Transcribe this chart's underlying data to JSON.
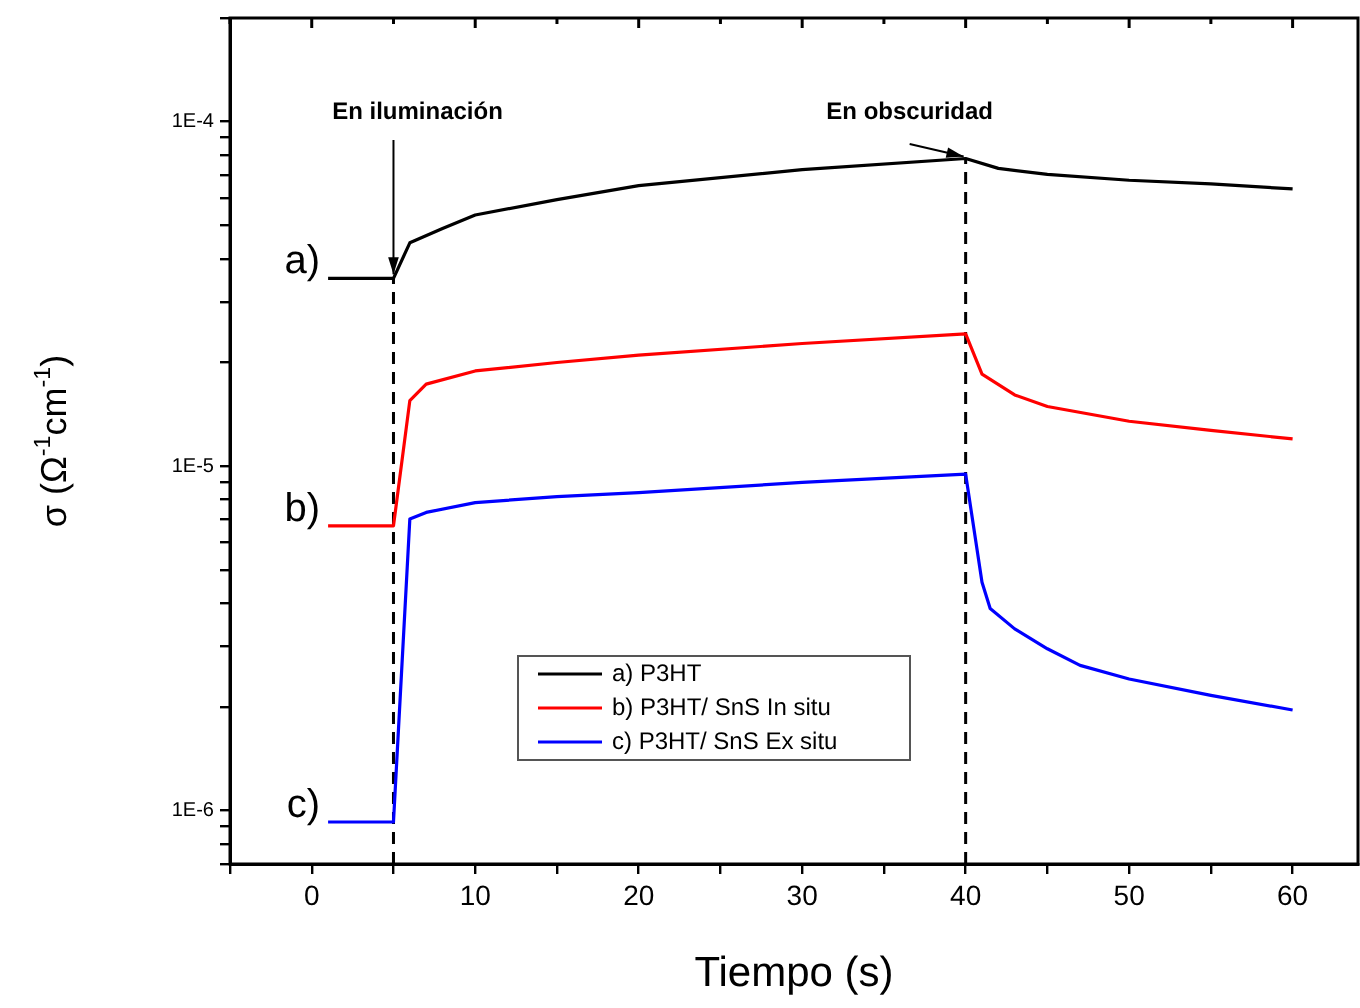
{
  "chart_data": {
    "type": "line",
    "xlabel": "Tiempo (s)",
    "ylabel": "σ (Ω$^{-1}$cm$^{-1}$)",
    "log": "y",
    "marker": "none",
    "legend": "bottom",
    "xlim": [
      -5,
      64
    ],
    "xticks": [
      {
        "value": -5,
        "label": null
      },
      0,
      {
        "value": 5,
        "label": null
      },
      10,
      {
        "value": 15,
        "label": null
      },
      20,
      {
        "value": 25,
        "label": null
      },
      30,
      {
        "value": 35,
        "label": null
      },
      40,
      {
        "value": 45,
        "label": null
      },
      50,
      {
        "value": 55,
        "label": null
      },
      60
    ],
    "ylim": [
      7e-07,
      0.0002
    ],
    "yticks": [
      {
        "value": 7e-07,
        "label": null
      },
      {
        "value": 8e-07,
        "label": null
      },
      {
        "value": 9e-07,
        "label": null
      },
      {
        "value": 1e-06,
        "label": "1E-6"
      },
      {
        "value": 2e-06,
        "label": null
      },
      {
        "value": 3e-06,
        "label": null
      },
      {
        "value": 4e-06,
        "label": null
      },
      {
        "value": 5e-06,
        "label": null
      },
      {
        "value": 6e-06,
        "label": null
      },
      {
        "value": 7e-06,
        "label": null
      },
      {
        "value": 8e-06,
        "label": null
      },
      {
        "value": 9e-06,
        "label": null
      },
      {
        "value": 1e-05,
        "label": "1E-5"
      },
      {
        "value": 2e-05,
        "label": null
      },
      {
        "value": 3e-05,
        "label": null
      },
      {
        "value": 4e-05,
        "label": null
      },
      {
        "value": 5e-05,
        "label": null
      },
      {
        "value": 6e-05,
        "label": null
      },
      {
        "value": 7e-05,
        "label": null
      },
      {
        "value": 8e-05,
        "label": null
      },
      {
        "value": 9e-05,
        "label": null
      },
      {
        "value": 0.0001,
        "label": "1E-4"
      },
      {
        "value": 0.0002,
        "label": null
      }
    ],
    "series": [
      {
        "name": "a) P3HT",
        "color": "#000000",
        "x": [
          1,
          5,
          6,
          8,
          10,
          15,
          20,
          30,
          40,
          42,
          45,
          50,
          55,
          60
        ],
        "values": [
          3.51e-05,
          3.51e-05,
          4.45e-05,
          4.9e-05,
          5.36e-05,
          5.94e-05,
          6.52e-05,
          7.26e-05,
          7.82e-05,
          7.32e-05,
          7.03e-05,
          6.76e-05,
          6.6e-05,
          6.38e-05
        ]
      },
      {
        "name": "b) P3HT/ SnS In situ",
        "color": "#ff0000",
        "x": [
          1,
          5,
          6,
          7,
          10,
          15,
          20,
          30,
          40,
          41,
          43,
          45,
          50,
          55,
          60
        ],
        "values": [
          6.71e-06,
          6.71e-06,
          1.55e-05,
          1.73e-05,
          1.89e-05,
          2e-05,
          2.1e-05,
          2.27e-05,
          2.42e-05,
          1.85e-05,
          1.61e-05,
          1.49e-05,
          1.35e-05,
          1.27e-05,
          1.2e-05
        ]
      },
      {
        "name": "c) P3HT/ SnS Ex situ",
        "color": "#0000ff",
        "x": [
          1,
          5,
          6,
          7,
          10,
          15,
          20,
          30,
          40,
          41,
          41.5,
          43,
          45,
          47,
          50,
          55,
          60
        ],
        "values": [
          9.27e-07,
          9.27e-07,
          7.02e-06,
          7.34e-06,
          7.84e-06,
          8.16e-06,
          8.38e-06,
          8.97e-06,
          9.48e-06,
          4.6e-06,
          3.86e-06,
          3.37e-06,
          2.95e-06,
          2.64e-06,
          2.41e-06,
          2.16e-06,
          1.96e-06
        ]
      }
    ],
    "ref_lines": [
      {
        "axis": "x",
        "value": 5,
        "color": "#000000",
        "line_style": "dashed"
      },
      {
        "axis": "x",
        "value": 40,
        "color": "#000000",
        "line_style": "dashed"
      }
    ],
    "annotations": [
      {
        "text": "En iluminación",
        "x": 5,
        "y": 3.51e-05
      },
      {
        "text": "En obscuridad",
        "x": 40,
        "y": 7.82e-05
      },
      "a)",
      "b)",
      "c)"
    ]
  }
}
